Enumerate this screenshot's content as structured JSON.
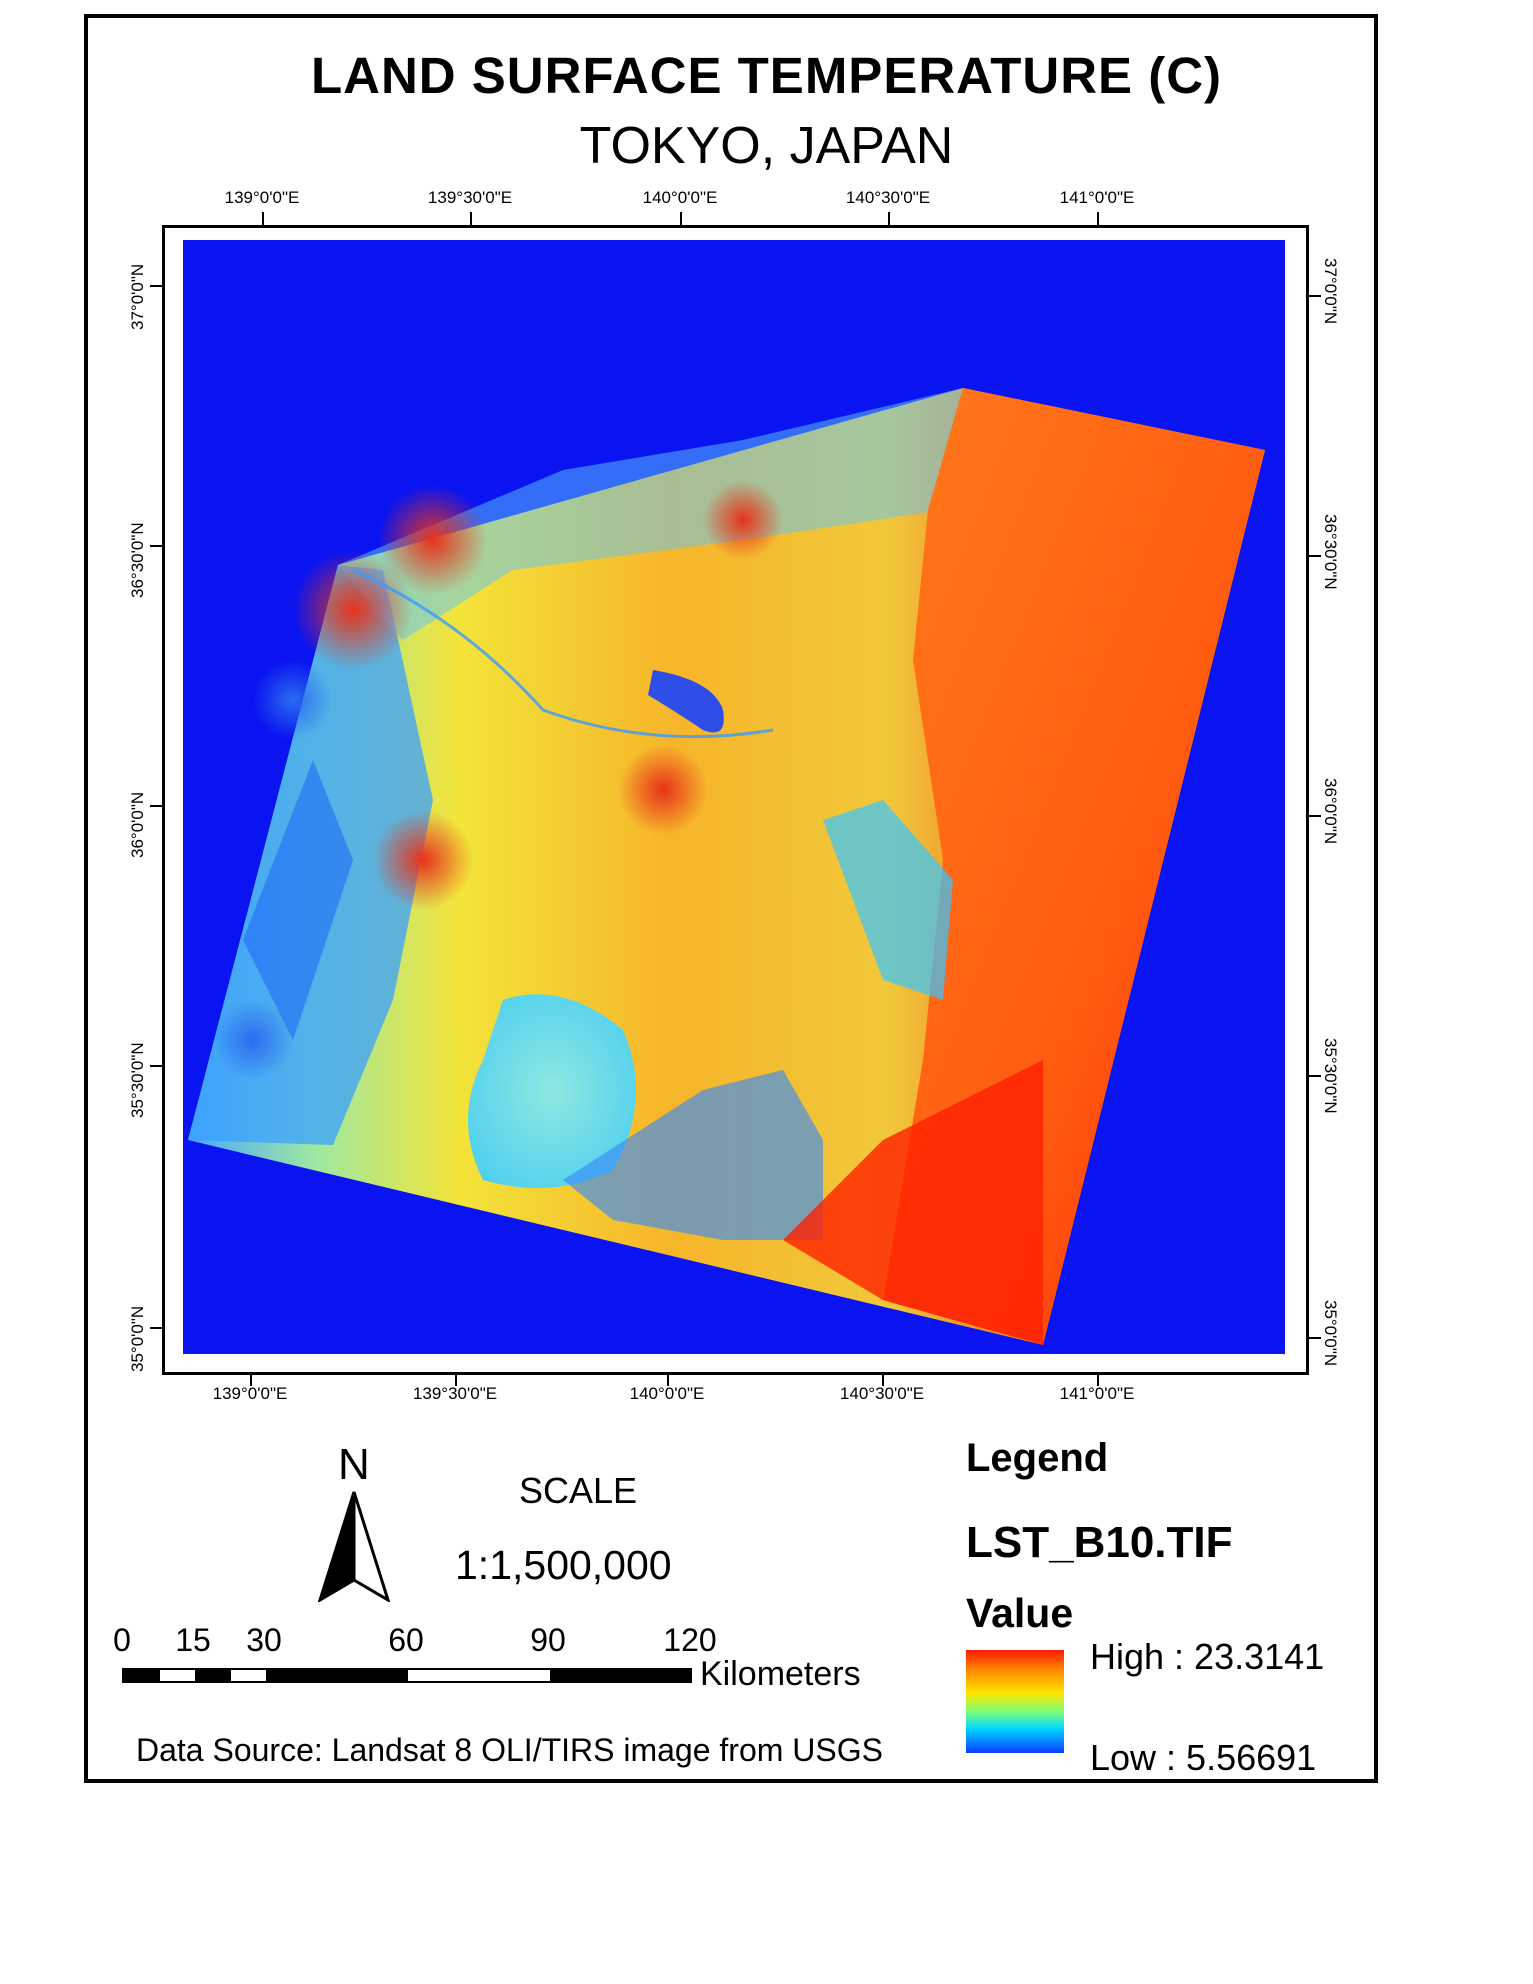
{
  "map": {
    "title": "LAND SURFACE TEMPERATURE (C)",
    "subtitle": "TOKYO, JAPAN",
    "graticule": {
      "top_labels": [
        "139°0'0\"E",
        "139°30'0\"E",
        "140°0'0\"E",
        "140°30'0\"E",
        "141°0'0\"E"
      ],
      "bottom_labels": [
        "139°0'0\"E",
        "139°30'0\"E",
        "140°0'0\"E",
        "140°30'0\"E",
        "141°0'0\"E"
      ],
      "left_labels": [
        "37°0'0\"N",
        "36°30'0\"N",
        "36°0'0\"N",
        "35°30'0\"N",
        "35°0'0\"N"
      ],
      "right_labels": [
        "37°0'0\"N",
        "36°30'0\"N",
        "36°0'0\"N",
        "35°30'0\"N",
        "35°0'0\"N"
      ]
    },
    "colors": {
      "nodata_background": "#0a14f0",
      "high": "#ff1a00",
      "mid": "#ffe600",
      "low": "#0a3cff"
    }
  },
  "north_arrow": {
    "label": "N",
    "icon": "north-arrow-icon"
  },
  "scale": {
    "title": "SCALE",
    "ratio": "1:1,500,000",
    "bar_labels": [
      "0",
      "15",
      "30",
      "60",
      "90",
      "120"
    ],
    "unit": "Kilometers"
  },
  "data_source": "Data Source: Landsat 8 OLI/TIRS image from USGS",
  "legend": {
    "title": "Legend",
    "layer": "LST_B10.TIF",
    "field": "Value",
    "high_label": "High : 23.3141",
    "low_label": "Low : 5.56691"
  }
}
